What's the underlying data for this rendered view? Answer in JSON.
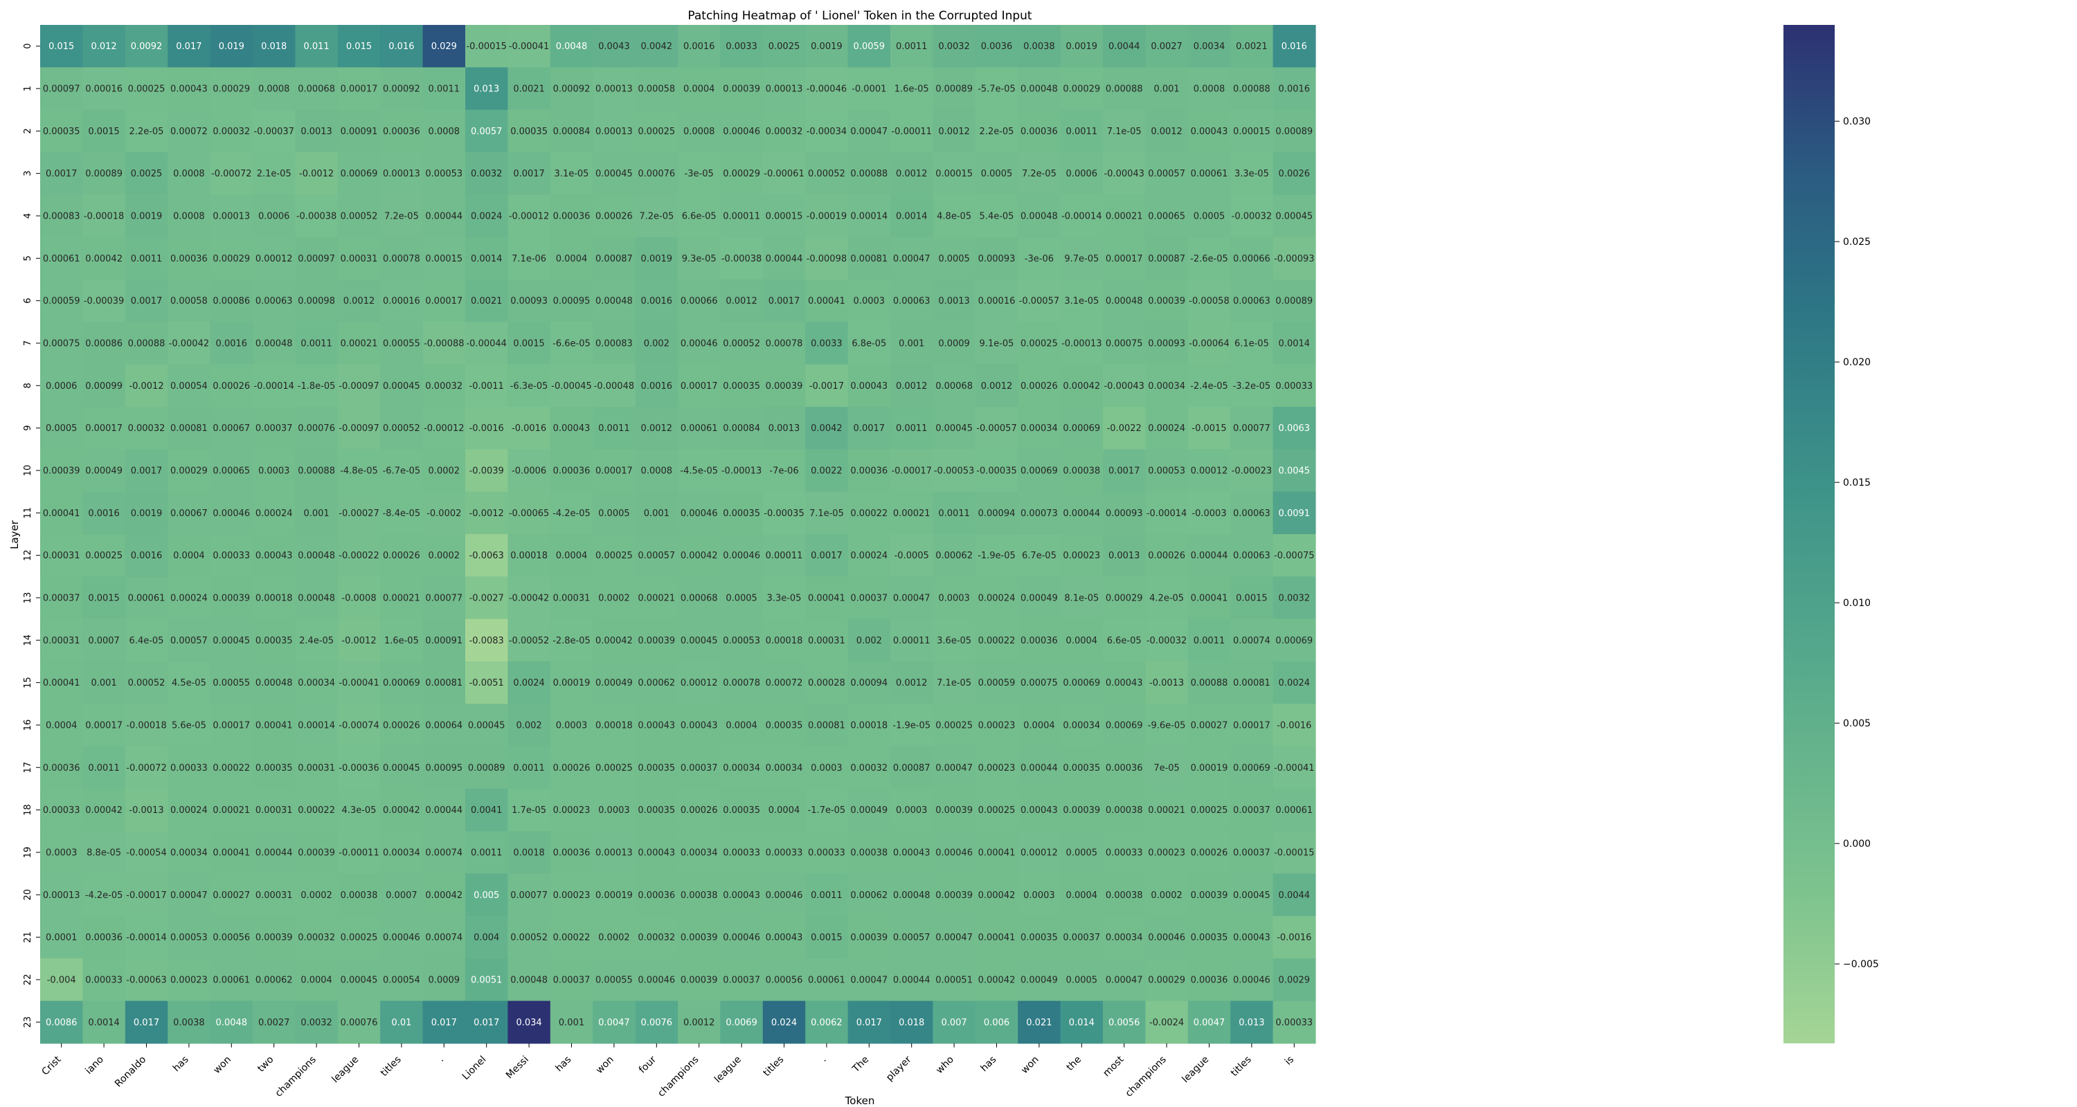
{
  "chart_data": {
    "type": "heatmap",
    "title": "Patching Heatmap of ' Lionel' Token in the Corrupted Input",
    "xlabel": "Token",
    "ylabel": "Layer",
    "x_tick_labels": [
      "Crist",
      "iano",
      "Ronaldo",
      "has",
      "won",
      "two",
      "champions",
      "league",
      "titles",
      ".",
      "Lionel",
      "Messi",
      "has",
      "won",
      "four",
      "champions",
      "league",
      "titles",
      ".",
      "The",
      "player",
      "who",
      "has",
      "won",
      "the",
      "most",
      "champions",
      "league",
      "titles",
      "is"
    ],
    "y_tick_labels": [
      "0",
      "1",
      "2",
      "3",
      "4",
      "5",
      "6",
      "7",
      "8",
      "9",
      "10",
      "11",
      "12",
      "13",
      "14",
      "15",
      "16",
      "17",
      "18",
      "19",
      "20",
      "21",
      "22",
      "23"
    ],
    "colormap": "crest",
    "vmin": -0.0083,
    "vmax": 0.034,
    "colorbar_ticks": [
      "0.030",
      "0.025",
      "0.020",
      "0.015",
      "0.010",
      "0.005",
      "0.000",
      "−0.005"
    ],
    "colorbar_tick_values": [
      0.03,
      0.025,
      0.02,
      0.015,
      0.01,
      0.005,
      0.0,
      -0.005
    ],
    "cells": [
      [
        "0.015",
        "0.012",
        "0.0092",
        "0.017",
        "0.019",
        "0.018",
        "0.011",
        "0.015",
        "0.016",
        "0.029",
        "-0.00015",
        "-0.00041",
        "0.0048",
        "0.0043",
        "0.0042",
        "0.0016",
        "0.0033",
        "0.0025",
        "0.0019",
        "0.0059",
        "0.0011",
        "0.0032",
        "0.0036",
        "0.0038",
        "0.0019",
        "0.0044",
        "0.0027",
        "0.0034",
        "0.0021",
        "0.016"
      ],
      [
        "0.00097",
        "0.00016",
        "0.00025",
        "0.00043",
        "0.00029",
        "0.0008",
        "0.00068",
        "0.00017",
        "0.00092",
        "0.0011",
        "0.013",
        "0.0021",
        "0.00092",
        "0.00013",
        "0.00058",
        "0.0004",
        "0.00039",
        "0.00013",
        "-0.00046",
        "-0.0001",
        "1.6e-05",
        "0.00089",
        "-5.7e-05",
        "0.00048",
        "0.00029",
        "0.00088",
        "0.001",
        "0.0008",
        "0.00088",
        "0.0016"
      ],
      [
        "0.00035",
        "0.0015",
        "2.2e-05",
        "0.00072",
        "0.00032",
        "-0.00037",
        "0.0013",
        "0.00091",
        "0.00036",
        "0.0008",
        "0.0057",
        "0.00035",
        "0.00084",
        "0.00013",
        "0.00025",
        "0.0008",
        "0.00046",
        "0.00032",
        "-0.00034",
        "0.00047",
        "-0.00011",
        "0.0012",
        "2.2e-05",
        "0.00036",
        "0.0011",
        "7.1e-05",
        "0.0012",
        "0.00043",
        "0.00015",
        "0.00089"
      ],
      [
        "0.0017",
        "0.00089",
        "0.0025",
        "0.0008",
        "-0.00072",
        "2.1e-05",
        "-0.0012",
        "0.00069",
        "0.00013",
        "0.00053",
        "0.0032",
        "0.0017",
        "3.1e-05",
        "0.00045",
        "0.00076",
        "-3e-05",
        "0.00029",
        "-0.00061",
        "0.00052",
        "0.00088",
        "0.0012",
        "0.00015",
        "0.0005",
        "7.2e-05",
        "0.0006",
        "-0.00043",
        "0.00057",
        "0.00061",
        "3.3e-05",
        "0.0026"
      ],
      [
        "0.00083",
        "-0.00018",
        "0.0019",
        "0.0008",
        "0.00013",
        "0.0006",
        "-0.00038",
        "0.00052",
        "7.2e-05",
        "0.00044",
        "0.0024",
        "-0.00012",
        "0.00036",
        "0.00026",
        "7.2e-05",
        "6.6e-05",
        "0.00011",
        "0.00015",
        "-0.00019",
        "0.00014",
        "0.0014",
        "4.8e-05",
        "5.4e-05",
        "0.00048",
        "-0.00014",
        "0.00021",
        "0.00065",
        "0.0005",
        "-0.00032",
        "0.00045"
      ],
      [
        "0.00061",
        "0.00042",
        "0.0011",
        "0.00036",
        "0.00029",
        "0.00012",
        "0.00097",
        "0.00031",
        "0.00078",
        "0.00015",
        "0.0014",
        "7.1e-06",
        "0.0004",
        "0.00087",
        "0.0019",
        "9.3e-05",
        "-0.00038",
        "0.00044",
        "-0.00098",
        "0.00081",
        "0.00047",
        "0.0005",
        "0.00093",
        "-3e-06",
        "9.7e-05",
        "0.00017",
        "0.00087",
        "-2.6e-05",
        "0.00066",
        "-0.00093"
      ],
      [
        "0.00059",
        "-0.00039",
        "0.0017",
        "0.00058",
        "0.00086",
        "0.00063",
        "0.00098",
        "0.0012",
        "0.00016",
        "0.00017",
        "0.0021",
        "0.00093",
        "0.00095",
        "0.00048",
        "0.0016",
        "0.00066",
        "0.0012",
        "0.0017",
        "0.00041",
        "0.0003",
        "0.00063",
        "0.0013",
        "0.00016",
        "-0.00057",
        "3.1e-05",
        "0.00048",
        "0.00039",
        "-0.00058",
        "0.00063",
        "0.00089"
      ],
      [
        "0.00075",
        "0.00086",
        "0.00088",
        "-0.00042",
        "0.0016",
        "0.00048",
        "0.0011",
        "0.00021",
        "0.00055",
        "-0.00088",
        "-0.00044",
        "0.0015",
        "-6.6e-05",
        "0.00083",
        "0.002",
        "0.00046",
        "0.00052",
        "0.00078",
        "0.0033",
        "6.8e-05",
        "0.001",
        "0.0009",
        "9.1e-05",
        "0.00025",
        "-0.00013",
        "0.00075",
        "0.00093",
        "-0.00064",
        "6.1e-05",
        "0.0014"
      ],
      [
        "0.0006",
        "0.00099",
        "-0.0012",
        "0.00054",
        "0.00026",
        "-0.00014",
        "-1.8e-05",
        "-0.00097",
        "0.00045",
        "0.00032",
        "-0.0011",
        "-6.3e-05",
        "-0.00045",
        "-0.00048",
        "0.0016",
        "0.00017",
        "0.00035",
        "0.00039",
        "-0.0017",
        "0.00043",
        "0.0012",
        "0.00068",
        "0.0012",
        "0.00026",
        "0.00042",
        "-0.00043",
        "0.00034",
        "-2.4e-05",
        "-3.2e-05",
        "0.00033"
      ],
      [
        "0.0005",
        "0.00017",
        "0.00032",
        "0.00081",
        "0.00067",
        "0.00037",
        "0.00076",
        "-0.00097",
        "0.00052",
        "-0.00012",
        "-0.0016",
        "-0.0016",
        "0.00043",
        "0.0011",
        "0.0012",
        "0.00061",
        "0.00084",
        "0.0013",
        "0.0042",
        "0.0017",
        "0.0011",
        "0.00045",
        "-0.00057",
        "0.00034",
        "0.00069",
        "-0.0022",
        "0.00024",
        "-0.0015",
        "0.00077",
        "0.0063"
      ],
      [
        "0.00039",
        "0.00049",
        "0.0017",
        "0.00029",
        "0.00065",
        "0.0003",
        "0.00088",
        "-4.8e-05",
        "-6.7e-05",
        "0.0002",
        "-0.0039",
        "-0.0006",
        "0.00036",
        "0.00017",
        "0.0008",
        "-4.5e-05",
        "-0.00013",
        "-7e-06",
        "0.0022",
        "0.00036",
        "-0.00017",
        "-0.00053",
        "-0.00035",
        "0.00069",
        "0.00038",
        "0.0017",
        "0.00053",
        "0.00012",
        "-0.00023",
        "0.0045"
      ],
      [
        "0.00041",
        "0.0016",
        "0.0019",
        "0.00067",
        "0.00046",
        "0.00024",
        "0.001",
        "-0.00027",
        "-8.4e-05",
        "-0.0002",
        "-0.0012",
        "-0.00065",
        "-4.2e-05",
        "0.0005",
        "0.001",
        "0.00046",
        "0.00035",
        "-0.00035",
        "7.1e-05",
        "0.00022",
        "0.00021",
        "0.0011",
        "0.00094",
        "0.00073",
        "0.00044",
        "0.00093",
        "-0.00014",
        "-0.0003",
        "0.00063",
        "0.0091"
      ],
      [
        "0.00031",
        "0.00025",
        "0.0016",
        "0.0004",
        "0.00033",
        "0.00043",
        "0.00048",
        "-0.00022",
        "0.00026",
        "0.0002",
        "-0.0063",
        "0.00018",
        "0.0004",
        "0.00025",
        "0.00057",
        "0.00042",
        "0.00046",
        "0.00011",
        "0.0017",
        "0.00024",
        "-0.0005",
        "0.00062",
        "-1.9e-05",
        "6.7e-05",
        "0.00023",
        "0.0013",
        "0.00026",
        "0.00044",
        "0.00063",
        "-0.00075"
      ],
      [
        "0.00037",
        "0.0015",
        "0.00061",
        "0.00024",
        "0.00039",
        "0.00018",
        "0.00048",
        "-0.0008",
        "0.00021",
        "0.00077",
        "-0.0027",
        "-0.00042",
        "0.00031",
        "0.0002",
        "0.00021",
        "0.00068",
        "0.0005",
        "3.3e-05",
        "0.00041",
        "0.00037",
        "0.00047",
        "0.0003",
        "0.00024",
        "0.00049",
        "8.1e-05",
        "0.00029",
        "4.2e-05",
        "0.00041",
        "0.0015",
        "0.0032"
      ],
      [
        "0.00031",
        "0.0007",
        "6.4e-05",
        "0.00057",
        "0.00045",
        "0.00035",
        "2.4e-05",
        "-0.0012",
        "1.6e-05",
        "0.00091",
        "-0.0083",
        "-0.00052",
        "-2.8e-05",
        "0.00042",
        "0.00039",
        "0.00045",
        "0.00053",
        "0.00018",
        "0.00031",
        "0.002",
        "0.00011",
        "3.6e-05",
        "0.00022",
        "0.00036",
        "0.0004",
        "6.6e-05",
        "-0.00032",
        "0.0011",
        "0.00074",
        "0.00069"
      ],
      [
        "0.00041",
        "0.001",
        "0.00052",
        "4.5e-05",
        "0.00055",
        "0.00048",
        "0.00034",
        "-0.00041",
        "0.00069",
        "0.00081",
        "-0.0051",
        "0.0024",
        "0.00019",
        "0.00049",
        "0.00062",
        "0.00012",
        "0.00078",
        "0.00072",
        "0.00028",
        "0.00094",
        "0.0012",
        "7.1e-05",
        "0.00059",
        "0.00075",
        "0.00069",
        "0.00043",
        "-0.0013",
        "0.00088",
        "0.00081",
        "0.0024"
      ],
      [
        "0.0004",
        "0.00017",
        "-0.00018",
        "5.6e-05",
        "0.00017",
        "0.00041",
        "0.00014",
        "-0.00074",
        "0.00026",
        "0.00064",
        "0.00045",
        "0.002",
        "0.0003",
        "0.00018",
        "0.00043",
        "0.00043",
        "0.0004",
        "0.00035",
        "0.00081",
        "0.00018",
        "-1.9e-05",
        "0.00025",
        "0.00023",
        "0.0004",
        "0.00034",
        "0.00069",
        "-9.6e-05",
        "0.00027",
        "0.00017",
        "-0.0016"
      ],
      [
        "0.00036",
        "0.0011",
        "-0.00072",
        "0.00033",
        "0.00022",
        "0.00035",
        "0.00031",
        "-0.00036",
        "0.00045",
        "0.00095",
        "0.00089",
        "0.0011",
        "0.00026",
        "0.00025",
        "0.00035",
        "0.00037",
        "0.00034",
        "0.00034",
        "0.0003",
        "0.00032",
        "0.00087",
        "0.00047",
        "0.00023",
        "0.00044",
        "0.00035",
        "0.00036",
        "7e-05",
        "0.00019",
        "0.00069",
        "-0.00041"
      ],
      [
        "0.00033",
        "0.00042",
        "-0.0013",
        "0.00024",
        "0.00021",
        "0.00031",
        "0.00022",
        "4.3e-05",
        "0.00042",
        "0.00044",
        "0.0041",
        "1.7e-05",
        "0.00023",
        "0.0003",
        "0.00035",
        "0.00026",
        "0.00035",
        "0.0004",
        "-1.7e-05",
        "0.00049",
        "0.0003",
        "0.00039",
        "0.00025",
        "0.00043",
        "0.00039",
        "0.00038",
        "0.00021",
        "0.00025",
        "0.00037",
        "0.00061"
      ],
      [
        "0.0003",
        "8.8e-05",
        "-0.00054",
        "0.00034",
        "0.00041",
        "0.00044",
        "0.00039",
        "-0.00011",
        "0.00034",
        "0.00074",
        "0.0011",
        "0.0018",
        "0.00036",
        "0.00013",
        "0.00043",
        "0.00034",
        "0.00033",
        "0.00033",
        "0.00033",
        "0.00038",
        "0.00043",
        "0.00046",
        "0.00041",
        "0.00012",
        "0.0005",
        "0.00033",
        "0.00023",
        "0.00026",
        "0.00037",
        "-0.00015"
      ],
      [
        "0.00013",
        "-4.2e-05",
        "-0.00017",
        "0.00047",
        "0.00027",
        "0.00031",
        "0.0002",
        "0.00038",
        "0.0007",
        "0.00042",
        "0.005",
        "0.00077",
        "0.00023",
        "0.00019",
        "0.00036",
        "0.00038",
        "0.00043",
        "0.00046",
        "0.0011",
        "0.00062",
        "0.00048",
        "0.00039",
        "0.00042",
        "0.0003",
        "0.0004",
        "0.00038",
        "0.0002",
        "0.00039",
        "0.00045",
        "0.0044"
      ],
      [
        "0.0001",
        "0.00036",
        "-0.00014",
        "0.00053",
        "0.00056",
        "0.00039",
        "0.00032",
        "0.00025",
        "0.00046",
        "0.00074",
        "0.004",
        "0.00052",
        "0.00022",
        "0.0002",
        "0.00032",
        "0.00039",
        "0.00046",
        "0.00043",
        "0.0015",
        "0.00039",
        "0.00057",
        "0.00047",
        "0.00041",
        "0.00035",
        "0.00037",
        "0.00034",
        "0.00046",
        "0.00035",
        "0.00043",
        "-0.0016"
      ],
      [
        "-0.004",
        "0.00033",
        "-0.00063",
        "0.00023",
        "0.00061",
        "0.00062",
        "0.0004",
        "0.00045",
        "0.00054",
        "0.0009",
        "0.0051",
        "0.00048",
        "0.00037",
        "0.00055",
        "0.00046",
        "0.00039",
        "0.00037",
        "0.00056",
        "0.00061",
        "0.00047",
        "0.00044",
        "0.00051",
        "0.00042",
        "0.00049",
        "0.0005",
        "0.00047",
        "0.00029",
        "0.00036",
        "0.00046",
        "0.0029"
      ],
      [
        "0.0086",
        "0.0014",
        "0.017",
        "0.0038",
        "0.0048",
        "0.0027",
        "0.0032",
        "0.00076",
        "0.01",
        "0.017",
        "0.017",
        "0.034",
        "0.001",
        "0.0047",
        "0.0076",
        "0.0012",
        "0.0069",
        "0.024",
        "0.0062",
        "0.017",
        "0.018",
        "0.007",
        "0.006",
        "0.021",
        "0.014",
        "0.0056",
        "-0.0024",
        "0.0047",
        "0.013",
        "0.00033"
      ]
    ]
  }
}
